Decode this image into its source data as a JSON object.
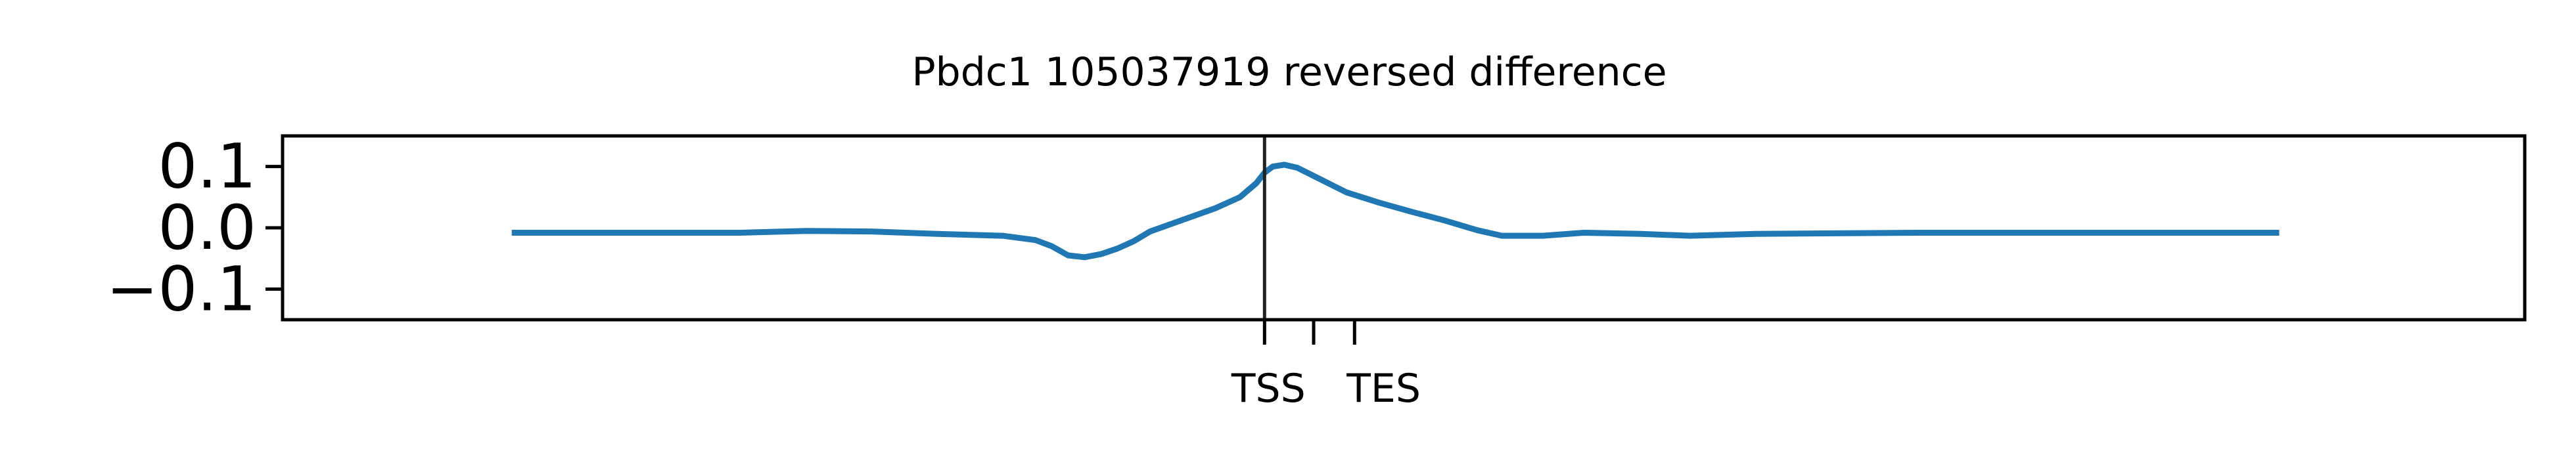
{
  "chart_data": {
    "type": "line",
    "title": "Pbdc1 105037919 reversed difference",
    "xlabel": "",
    "ylabel": "",
    "ylim": [
      -0.15,
      0.15
    ],
    "y_ticks": [
      {
        "value": 0.1,
        "label": "0.1"
      },
      {
        "value": 0.0,
        "label": "0.0"
      },
      {
        "value": -0.1,
        "label": "−0.1"
      }
    ],
    "x_ticks": [
      {
        "value": 0.0,
        "label": "TSS"
      },
      {
        "value": 0.3,
        "label": ""
      },
      {
        "value": 0.55,
        "label": "TES"
      }
    ],
    "xlim": [
      -6.0,
      7.7
    ],
    "grid": false,
    "vline_at": 0.0,
    "colors": {
      "line": "#1f77b4",
      "vline": "#222222",
      "axes": "#000000"
    },
    "series": [
      {
        "values": [
          [
            -4.6,
            -0.008
          ],
          [
            -3.5,
            -0.008
          ],
          [
            -3.2,
            -0.008
          ],
          [
            -2.8,
            -0.005
          ],
          [
            -2.4,
            -0.006
          ],
          [
            -2.0,
            -0.01
          ],
          [
            -1.6,
            -0.013
          ],
          [
            -1.4,
            -0.02
          ],
          [
            -1.3,
            -0.03
          ],
          [
            -1.2,
            -0.045
          ],
          [
            -1.1,
            -0.048
          ],
          [
            -1.0,
            -0.043
          ],
          [
            -0.9,
            -0.034
          ],
          [
            -0.8,
            -0.022
          ],
          [
            -0.7,
            -0.006
          ],
          [
            -0.5,
            0.013
          ],
          [
            -0.3,
            0.032
          ],
          [
            -0.15,
            0.05
          ],
          [
            -0.05,
            0.073
          ],
          [
            0.0,
            0.09
          ],
          [
            0.05,
            0.1
          ],
          [
            0.12,
            0.103
          ],
          [
            0.2,
            0.098
          ],
          [
            0.35,
            0.078
          ],
          [
            0.5,
            0.058
          ],
          [
            0.7,
            0.041
          ],
          [
            0.9,
            0.026
          ],
          [
            1.1,
            0.012
          ],
          [
            1.3,
            -0.004
          ],
          [
            1.45,
            -0.013
          ],
          [
            1.7,
            -0.013
          ],
          [
            1.95,
            -0.008
          ],
          [
            2.3,
            -0.01
          ],
          [
            2.6,
            -0.013
          ],
          [
            3.0,
            -0.01
          ],
          [
            4.0,
            -0.008
          ],
          [
            5.0,
            -0.008
          ],
          [
            6.2,
            -0.008
          ]
        ]
      }
    ]
  }
}
